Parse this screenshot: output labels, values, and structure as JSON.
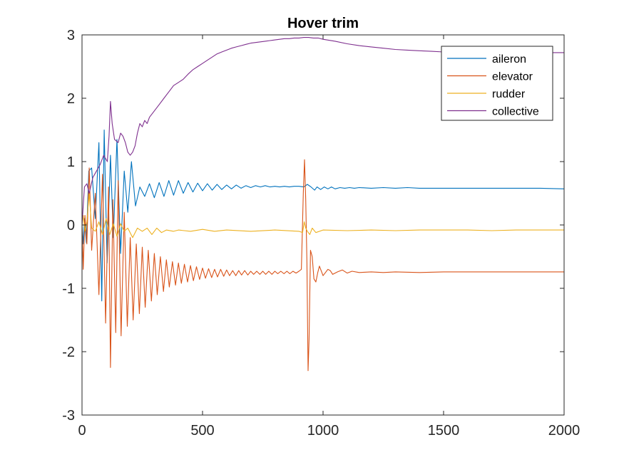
{
  "chart_data": {
    "type": "line",
    "title": "Hover trim",
    "xlabel": "",
    "ylabel": "",
    "xlim": [
      0,
      2000
    ],
    "ylim": [
      -3,
      3
    ],
    "xticks": [
      "0",
      "500",
      "1000",
      "1500",
      "2000"
    ],
    "yticks": [
      "-3",
      "-2",
      "-1",
      "0",
      "1",
      "2",
      "3"
    ],
    "grid": false,
    "legend_position": "top-right",
    "series": [
      {
        "name": "aileron",
        "color": "#0072BD",
        "points": [
          [
            0,
            0
          ],
          [
            5,
            -0.3
          ],
          [
            10,
            0.1
          ],
          [
            18,
            -0.28
          ],
          [
            28,
            0.85
          ],
          [
            40,
            0.9
          ],
          [
            55,
            0.1
          ],
          [
            70,
            1.3
          ],
          [
            82,
            -1.2
          ],
          [
            92,
            1.5
          ],
          [
            104,
            -0.6
          ],
          [
            118,
            1.1
          ],
          [
            130,
            -0.2
          ],
          [
            145,
            1.35
          ],
          [
            160,
            -0.45
          ],
          [
            175,
            0.85
          ],
          [
            190,
            0.2
          ],
          [
            205,
            1.0
          ],
          [
            222,
            0.3
          ],
          [
            240,
            0.6
          ],
          [
            260,
            0.45
          ],
          [
            280,
            0.65
          ],
          [
            300,
            0.43
          ],
          [
            320,
            0.67
          ],
          [
            340,
            0.45
          ],
          [
            360,
            0.7
          ],
          [
            380,
            0.47
          ],
          [
            400,
            0.7
          ],
          [
            420,
            0.5
          ],
          [
            440,
            0.67
          ],
          [
            460,
            0.52
          ],
          [
            480,
            0.66
          ],
          [
            500,
            0.54
          ],
          [
            520,
            0.65
          ],
          [
            540,
            0.55
          ],
          [
            560,
            0.64
          ],
          [
            580,
            0.56
          ],
          [
            600,
            0.63
          ],
          [
            620,
            0.57
          ],
          [
            640,
            0.63
          ],
          [
            660,
            0.58
          ],
          [
            680,
            0.62
          ],
          [
            700,
            0.59
          ],
          [
            720,
            0.62
          ],
          [
            740,
            0.6
          ],
          [
            760,
            0.62
          ],
          [
            780,
            0.6
          ],
          [
            800,
            0.61
          ],
          [
            820,
            0.6
          ],
          [
            840,
            0.61
          ],
          [
            860,
            0.6
          ],
          [
            880,
            0.61
          ],
          [
            900,
            0.61
          ],
          [
            920,
            0.6
          ],
          [
            935,
            0.64
          ],
          [
            950,
            0.6
          ],
          [
            965,
            0.55
          ],
          [
            975,
            0.6
          ],
          [
            990,
            0.56
          ],
          [
            1005,
            0.6
          ],
          [
            1020,
            0.57
          ],
          [
            1035,
            0.6
          ],
          [
            1050,
            0.57
          ],
          [
            1070,
            0.59
          ],
          [
            1090,
            0.58
          ],
          [
            1110,
            0.59
          ],
          [
            1130,
            0.58
          ],
          [
            1150,
            0.59
          ],
          [
            1200,
            0.58
          ],
          [
            1250,
            0.59
          ],
          [
            1300,
            0.58
          ],
          [
            1350,
            0.59
          ],
          [
            1400,
            0.58
          ],
          [
            1450,
            0.58
          ],
          [
            1500,
            0.58
          ],
          [
            1600,
            0.58
          ],
          [
            1700,
            0.58
          ],
          [
            1800,
            0.58
          ],
          [
            1900,
            0.58
          ],
          [
            2000,
            0.57
          ]
        ]
      },
      {
        "name": "elevator",
        "color": "#D95319",
        "points": [
          [
            0,
            0
          ],
          [
            5,
            -0.7
          ],
          [
            12,
            0.15
          ],
          [
            20,
            -0.3
          ],
          [
            30,
            0.9
          ],
          [
            40,
            -0.4
          ],
          [
            55,
            0.5
          ],
          [
            70,
            -1.1
          ],
          [
            85,
            0.8
          ],
          [
            98,
            -1.55
          ],
          [
            110,
            0.6
          ],
          [
            118,
            -2.25
          ],
          [
            128,
            0.4
          ],
          [
            140,
            -1.7
          ],
          [
            150,
            0.7
          ],
          [
            162,
            -1.75
          ],
          [
            175,
            0.2
          ],
          [
            188,
            -1.6
          ],
          [
            200,
            -0.2
          ],
          [
            212,
            -1.5
          ],
          [
            225,
            -0.3
          ],
          [
            238,
            -1.4
          ],
          [
            250,
            -0.35
          ],
          [
            262,
            -1.3
          ],
          [
            275,
            -0.4
          ],
          [
            288,
            -1.2
          ],
          [
            300,
            -0.45
          ],
          [
            312,
            -1.1
          ],
          [
            325,
            -0.5
          ],
          [
            338,
            -1.05
          ],
          [
            350,
            -0.55
          ],
          [
            362,
            -0.98
          ],
          [
            375,
            -0.58
          ],
          [
            388,
            -0.95
          ],
          [
            400,
            -0.6
          ],
          [
            412,
            -0.92
          ],
          [
            425,
            -0.62
          ],
          [
            438,
            -0.9
          ],
          [
            450,
            -0.64
          ],
          [
            462,
            -0.88
          ],
          [
            475,
            -0.66
          ],
          [
            488,
            -0.86
          ],
          [
            500,
            -0.68
          ],
          [
            512,
            -0.84
          ],
          [
            525,
            -0.69
          ],
          [
            538,
            -0.83
          ],
          [
            550,
            -0.7
          ],
          [
            562,
            -0.82
          ],
          [
            575,
            -0.7
          ],
          [
            588,
            -0.81
          ],
          [
            600,
            -0.71
          ],
          [
            612,
            -0.8
          ],
          [
            625,
            -0.72
          ],
          [
            638,
            -0.8
          ],
          [
            650,
            -0.72
          ],
          [
            662,
            -0.79
          ],
          [
            675,
            -0.72
          ],
          [
            688,
            -0.79
          ],
          [
            700,
            -0.73
          ],
          [
            712,
            -0.78
          ],
          [
            725,
            -0.73
          ],
          [
            738,
            -0.78
          ],
          [
            750,
            -0.73
          ],
          [
            762,
            -0.78
          ],
          [
            775,
            -0.73
          ],
          [
            788,
            -0.78
          ],
          [
            800,
            -0.73
          ],
          [
            812,
            -0.77
          ],
          [
            825,
            -0.73
          ],
          [
            838,
            -0.77
          ],
          [
            850,
            -0.73
          ],
          [
            862,
            -0.77
          ],
          [
            875,
            -0.73
          ],
          [
            888,
            -0.76
          ],
          [
            900,
            -0.73
          ],
          [
            910,
            -0.7
          ],
          [
            918,
            0.5
          ],
          [
            923,
            1.03
          ],
          [
            928,
            0.4
          ],
          [
            933,
            -0.6
          ],
          [
            938,
            -2.3
          ],
          [
            942,
            -1.8
          ],
          [
            948,
            -0.4
          ],
          [
            955,
            -0.5
          ],
          [
            962,
            -0.85
          ],
          [
            970,
            -0.9
          ],
          [
            978,
            -0.75
          ],
          [
            985,
            -0.65
          ],
          [
            992,
            -0.72
          ],
          [
            1000,
            -0.8
          ],
          [
            1010,
            -0.75
          ],
          [
            1020,
            -0.7
          ],
          [
            1030,
            -0.72
          ],
          [
            1040,
            -0.78
          ],
          [
            1060,
            -0.74
          ],
          [
            1080,
            -0.71
          ],
          [
            1100,
            -0.76
          ],
          [
            1120,
            -0.73
          ],
          [
            1150,
            -0.75
          ],
          [
            1200,
            -0.74
          ],
          [
            1250,
            -0.75
          ],
          [
            1300,
            -0.74
          ],
          [
            1400,
            -0.75
          ],
          [
            1500,
            -0.74
          ],
          [
            1600,
            -0.74
          ],
          [
            1700,
            -0.74
          ],
          [
            1800,
            -0.74
          ],
          [
            1900,
            -0.74
          ],
          [
            2000,
            -0.74
          ]
        ]
      },
      {
        "name": "rudder",
        "color": "#EDB120",
        "points": [
          [
            0,
            0
          ],
          [
            5,
            0.15
          ],
          [
            12,
            -0.1
          ],
          [
            20,
            0.05
          ],
          [
            30,
            0.5
          ],
          [
            40,
            -0.05
          ],
          [
            55,
            -0.1
          ],
          [
            70,
            0.05
          ],
          [
            85,
            -0.15
          ],
          [
            100,
            0.1
          ],
          [
            115,
            -0.15
          ],
          [
            130,
            0.02
          ],
          [
            145,
            -0.18
          ],
          [
            160,
            0.02
          ],
          [
            175,
            -0.1
          ],
          [
            190,
            -0.05
          ],
          [
            210,
            -0.2
          ],
          [
            230,
            -0.05
          ],
          [
            250,
            -0.1
          ],
          [
            270,
            -0.05
          ],
          [
            290,
            -0.15
          ],
          [
            310,
            -0.05
          ],
          [
            330,
            -0.12
          ],
          [
            350,
            -0.08
          ],
          [
            380,
            -0.1
          ],
          [
            400,
            -0.08
          ],
          [
            450,
            -0.1
          ],
          [
            500,
            -0.07
          ],
          [
            550,
            -0.1
          ],
          [
            600,
            -0.08
          ],
          [
            700,
            -0.1
          ],
          [
            800,
            -0.08
          ],
          [
            900,
            -0.1
          ],
          [
            915,
            -0.12
          ],
          [
            922,
            0.05
          ],
          [
            928,
            -0.05
          ],
          [
            935,
            -0.1
          ],
          [
            945,
            -0.15
          ],
          [
            955,
            -0.05
          ],
          [
            970,
            -0.12
          ],
          [
            1000,
            -0.08
          ],
          [
            1100,
            -0.09
          ],
          [
            1200,
            -0.08
          ],
          [
            1300,
            -0.09
          ],
          [
            1400,
            -0.08
          ],
          [
            1500,
            -0.08
          ],
          [
            1600,
            -0.08
          ],
          [
            1700,
            -0.09
          ],
          [
            1800,
            -0.08
          ],
          [
            1900,
            -0.08
          ],
          [
            2000,
            -0.08
          ]
        ]
      },
      {
        "name": "collective",
        "color": "#7E2F8E",
        "points": [
          [
            0,
            0
          ],
          [
            5,
            0.3
          ],
          [
            10,
            0.6
          ],
          [
            20,
            0.65
          ],
          [
            30,
            0.5
          ],
          [
            45,
            0.75
          ],
          [
            60,
            0.85
          ],
          [
            75,
            0.95
          ],
          [
            90,
            1.1
          ],
          [
            105,
            1.0
          ],
          [
            112,
            1.4
          ],
          [
            118,
            1.95
          ],
          [
            125,
            1.6
          ],
          [
            135,
            1.35
          ],
          [
            150,
            1.3
          ],
          [
            160,
            1.45
          ],
          [
            170,
            1.4
          ],
          [
            180,
            1.3
          ],
          [
            190,
            1.15
          ],
          [
            200,
            1.1
          ],
          [
            210,
            1.15
          ],
          [
            220,
            1.25
          ],
          [
            230,
            1.45
          ],
          [
            240,
            1.6
          ],
          [
            250,
            1.55
          ],
          [
            260,
            1.65
          ],
          [
            270,
            1.6
          ],
          [
            280,
            1.7
          ],
          [
            300,
            1.8
          ],
          [
            320,
            1.9
          ],
          [
            340,
            2.0
          ],
          [
            360,
            2.1
          ],
          [
            380,
            2.2
          ],
          [
            400,
            2.25
          ],
          [
            420,
            2.3
          ],
          [
            440,
            2.38
          ],
          [
            460,
            2.45
          ],
          [
            480,
            2.5
          ],
          [
            500,
            2.55
          ],
          [
            520,
            2.6
          ],
          [
            540,
            2.65
          ],
          [
            560,
            2.7
          ],
          [
            580,
            2.73
          ],
          [
            600,
            2.76
          ],
          [
            620,
            2.79
          ],
          [
            640,
            2.81
          ],
          [
            660,
            2.83
          ],
          [
            680,
            2.85
          ],
          [
            700,
            2.87
          ],
          [
            720,
            2.88
          ],
          [
            740,
            2.89
          ],
          [
            760,
            2.9
          ],
          [
            780,
            2.91
          ],
          [
            800,
            2.92
          ],
          [
            820,
            2.93
          ],
          [
            840,
            2.94
          ],
          [
            860,
            2.94
          ],
          [
            880,
            2.95
          ],
          [
            900,
            2.95
          ],
          [
            920,
            2.96
          ],
          [
            940,
            2.96
          ],
          [
            960,
            2.95
          ],
          [
            980,
            2.95
          ],
          [
            1000,
            2.93
          ],
          [
            1050,
            2.9
          ],
          [
            1100,
            2.86
          ],
          [
            1150,
            2.83
          ],
          [
            1200,
            2.81
          ],
          [
            1250,
            2.79
          ],
          [
            1300,
            2.77
          ],
          [
            1350,
            2.76
          ],
          [
            1400,
            2.75
          ],
          [
            1450,
            2.74
          ],
          [
            1500,
            2.73
          ],
          [
            1550,
            2.73
          ],
          [
            1600,
            2.72
          ],
          [
            1650,
            2.72
          ],
          [
            1700,
            2.72
          ],
          [
            1800,
            2.72
          ],
          [
            1900,
            2.72
          ],
          [
            2000,
            2.72
          ]
        ]
      }
    ]
  }
}
